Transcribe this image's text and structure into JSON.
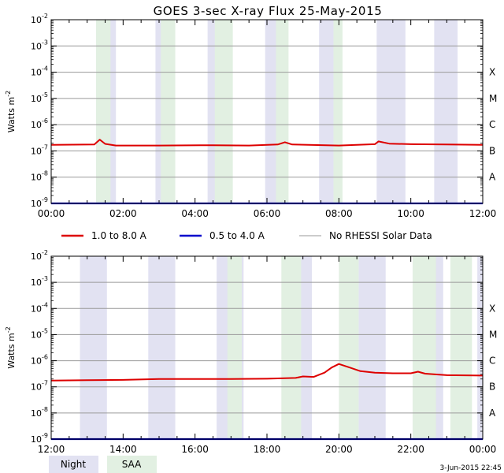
{
  "title": "GOES 3-sec X-ray Flux   25-May-2015",
  "timestamp": "3-Jun-2015 22:45",
  "legend": {
    "items": [
      {
        "label": "1.0 to 8.0 A",
        "color": "#dd0000"
      },
      {
        "label": "0.5 to 4.0 A",
        "color": "#0000cc"
      },
      {
        "label": "No RHESSI Solar Data",
        "color": "#999999"
      }
    ],
    "night_label": "Night",
    "saa_label": "SAA",
    "night_color": "#e2e2f2",
    "saa_color": "#e2f0e2"
  },
  "chart_data": [
    {
      "type": "line",
      "ylabel": "Watts m",
      "ylabel_sup": "-2",
      "yscale": "log",
      "ylim": [
        1e-09,
        0.01
      ],
      "ytick_exponents": [
        -2,
        -3,
        -4,
        -5,
        -6,
        -7,
        -8,
        -9
      ],
      "class_labels": [
        {
          "label": "X",
          "exp": -4
        },
        {
          "label": "M",
          "exp": -5
        },
        {
          "label": "C",
          "exp": -6
        },
        {
          "label": "B",
          "exp": -7
        },
        {
          "label": "A",
          "exp": -8
        }
      ],
      "xlim_hours": [
        0,
        12
      ],
      "xtick_labels": [
        "00:00",
        "02:00",
        "04:00",
        "06:00",
        "08:00",
        "10:00",
        "12:00"
      ],
      "night_bands": [
        [
          1.25,
          1.8
        ],
        [
          2.9,
          3.25
        ],
        [
          4.35,
          4.85
        ],
        [
          5.95,
          6.5
        ],
        [
          7.45,
          8.05
        ],
        [
          9.05,
          9.85
        ],
        [
          10.65,
          11.3
        ]
      ],
      "saa_bands": [
        [
          1.25,
          1.65
        ],
        [
          3.05,
          3.45
        ],
        [
          4.55,
          5.05
        ],
        [
          6.25,
          6.6
        ],
        [
          7.85,
          8.1
        ]
      ],
      "series": [
        {
          "name": "1.0 to 8.0 A",
          "color": "#dd0000",
          "points": [
            [
              0,
              1.7e-07
            ],
            [
              1.2,
              1.75e-07
            ],
            [
              1.35,
              2.7e-07
            ],
            [
              1.5,
              1.85e-07
            ],
            [
              1.8,
              1.6e-07
            ],
            [
              3.0,
              1.6e-07
            ],
            [
              4.5,
              1.65e-07
            ],
            [
              5.5,
              1.6e-07
            ],
            [
              6.3,
              1.75e-07
            ],
            [
              6.5,
              2.15e-07
            ],
            [
              6.7,
              1.75e-07
            ],
            [
              8.0,
              1.6e-07
            ],
            [
              9.0,
              1.8e-07
            ],
            [
              9.1,
              2.3e-07
            ],
            [
              9.4,
              1.9e-07
            ],
            [
              10.0,
              1.8e-07
            ],
            [
              11.0,
              1.75e-07
            ],
            [
              12.0,
              1.7e-07
            ]
          ]
        },
        {
          "name": "0.5 to 4.0 A",
          "color": "#0000cc",
          "points": [
            [
              0,
              1e-09
            ],
            [
              12,
              1e-09
            ]
          ]
        }
      ]
    },
    {
      "type": "line",
      "ylabel": "Watts m",
      "ylabel_sup": "-2",
      "yscale": "log",
      "ylim": [
        1e-09,
        0.01
      ],
      "ytick_exponents": [
        -2,
        -3,
        -4,
        -5,
        -6,
        -7,
        -8,
        -9
      ],
      "class_labels": [
        {
          "label": "X",
          "exp": -4
        },
        {
          "label": "M",
          "exp": -5
        },
        {
          "label": "C",
          "exp": -6
        },
        {
          "label": "B",
          "exp": -7
        },
        {
          "label": "A",
          "exp": -8
        }
      ],
      "xlim_hours": [
        12,
        24
      ],
      "xtick_labels": [
        "12:00",
        "14:00",
        "16:00",
        "18:00",
        "20:00",
        "22:00",
        "00:00"
      ],
      "night_bands": [
        [
          12.8,
          13.55
        ],
        [
          14.7,
          15.45
        ],
        [
          16.6,
          17.35
        ],
        [
          18.5,
          19.25
        ],
        [
          20.55,
          21.3
        ],
        [
          22.4,
          22.9
        ],
        [
          23.85,
          24.0
        ]
      ],
      "saa_bands": [
        [
          16.9,
          17.3
        ],
        [
          18.4,
          18.95
        ],
        [
          20.0,
          20.55
        ],
        [
          22.05,
          22.7
        ],
        [
          23.1,
          23.7
        ]
      ],
      "series": [
        {
          "name": "1.0 to 8.0 A",
          "color": "#dd0000",
          "points": [
            [
              12,
              1.75e-07
            ],
            [
              13,
              1.8e-07
            ],
            [
              14,
              1.85e-07
            ],
            [
              15,
              2e-07
            ],
            [
              16,
              2e-07
            ],
            [
              17,
              2e-07
            ],
            [
              18,
              2.05e-07
            ],
            [
              18.8,
              2.2e-07
            ],
            [
              19.0,
              2.5e-07
            ],
            [
              19.3,
              2.4e-07
            ],
            [
              19.6,
              3.5e-07
            ],
            [
              19.8,
              5.5e-07
            ],
            [
              20.0,
              7.5e-07
            ],
            [
              20.3,
              5.5e-07
            ],
            [
              20.6,
              4e-07
            ],
            [
              21.0,
              3.5e-07
            ],
            [
              21.5,
              3.3e-07
            ],
            [
              22.0,
              3.3e-07
            ],
            [
              22.2,
              3.8e-07
            ],
            [
              22.4,
              3.2e-07
            ],
            [
              23.0,
              2.8e-07
            ],
            [
              24.0,
              2.7e-07
            ]
          ]
        },
        {
          "name": "0.5 to 4.0 A",
          "color": "#0000cc",
          "points": [
            [
              12,
              1e-09
            ],
            [
              24,
              1e-09
            ]
          ]
        }
      ]
    }
  ]
}
